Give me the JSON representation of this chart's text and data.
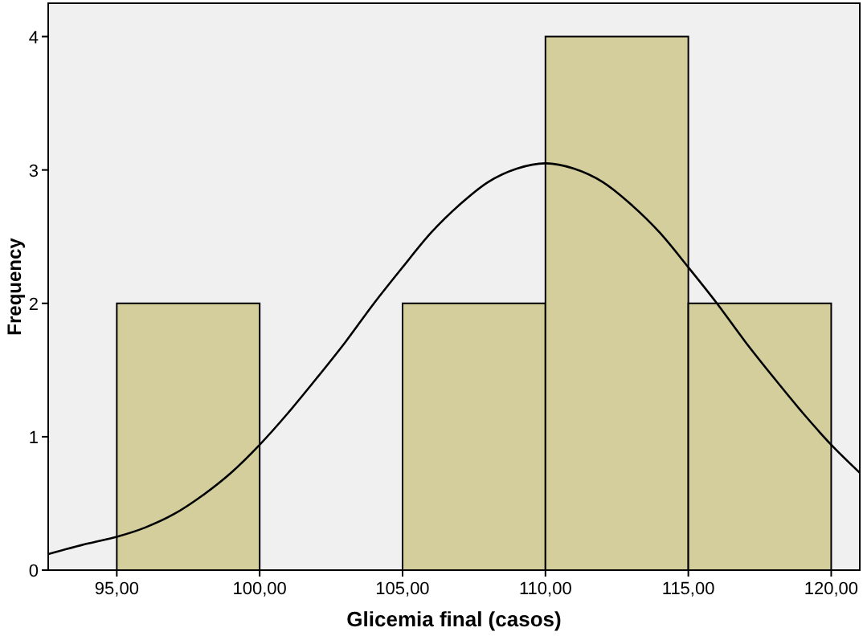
{
  "chart_data": {
    "type": "histogram",
    "xlabel": "Glicemia final (casos)",
    "ylabel": "Frequency",
    "bins": [
      95,
      100,
      105,
      110,
      115,
      120
    ],
    "values": [
      2,
      0,
      2,
      4,
      2
    ],
    "color": "#d3ce9b",
    "xlim": [
      92.6,
      121
    ],
    "ylim": [
      0,
      4.25
    ],
    "xticks": [
      {
        "value": 95,
        "label": "95,00"
      },
      {
        "value": 100,
        "label": "100,00"
      },
      {
        "value": 105,
        "label": "105,00"
      },
      {
        "value": 110,
        "label": "110,00"
      },
      {
        "value": 115,
        "label": "115,00"
      },
      {
        "value": 120,
        "label": "120,00"
      }
    ],
    "yticks": [
      0,
      1,
      2,
      3,
      4
    ],
    "grid": false,
    "series": [
      {
        "type": "line",
        "color": "#000000",
        "x": [
          92.6,
          94,
          95,
          96,
          97,
          98,
          99,
          100,
          101,
          102,
          103,
          104,
          105,
          106,
          107,
          108,
          109,
          110,
          111,
          112,
          113,
          114,
          115,
          116,
          117,
          118,
          119,
          120,
          121
        ],
        "values": [
          0.12,
          0.2,
          0.25,
          0.32,
          0.42,
          0.56,
          0.73,
          0.94,
          1.18,
          1.44,
          1.71,
          2.0,
          2.27,
          2.53,
          2.74,
          2.91,
          3.01,
          3.05,
          3.01,
          2.91,
          2.74,
          2.53,
          2.27,
          2.0,
          1.71,
          1.44,
          1.18,
          0.94,
          0.73
        ]
      }
    ]
  }
}
